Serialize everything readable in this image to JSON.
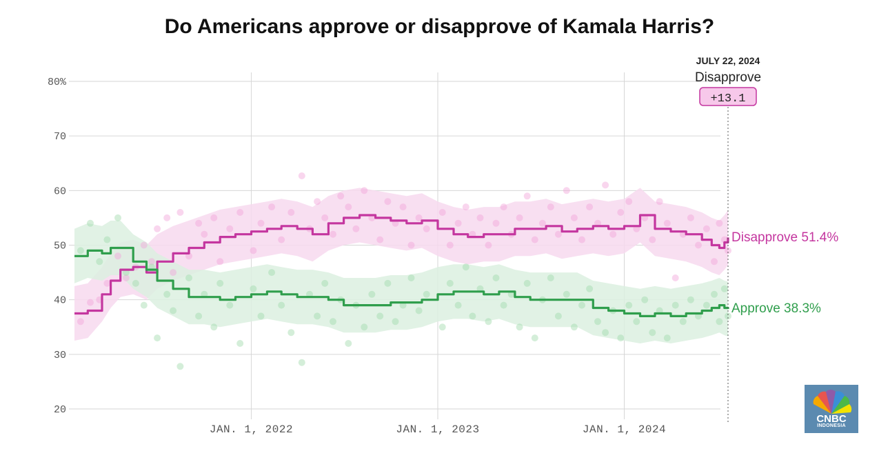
{
  "chart_data": {
    "type": "line",
    "title": "Do Americans approve or disapprove of Kamala Harris?",
    "y_ticks": [
      "80%",
      "70",
      "60",
      "50",
      "40",
      "30",
      "20"
    ],
    "y_tick_values": [
      80,
      70,
      60,
      50,
      40,
      30,
      20
    ],
    "ylim": [
      20,
      80
    ],
    "x_ticks": [
      "JAN. 1, 2022",
      "JAN. 1, 2023",
      "JAN. 1, 2024"
    ],
    "x_tick_dates": [
      "2022-01-01",
      "2023-01-01",
      "2024-01-01"
    ],
    "xlim": [
      "2021-01-20",
      "2024-07-22"
    ],
    "grid": true,
    "annotation": {
      "date_label": "JULY 22, 2024",
      "leader": "Disapprove",
      "net": "+13.1",
      "date": "2024-07-22"
    },
    "end_labels": {
      "disapprove": "Disapprove 51.4%",
      "approve": "Approve 38.3%"
    },
    "colors": {
      "disapprove": "#c4369f",
      "approve": "#2f9e4c",
      "disapprove_band": "#f7d9ee",
      "approve_band": "#dcf0e0"
    },
    "series": [
      {
        "key": "disapprove",
        "x": [
          "2021-01-20",
          "2021-02-15",
          "2021-03-15",
          "2021-04-01",
          "2021-04-20",
          "2021-05-15",
          "2021-06-10",
          "2021-07-01",
          "2021-08-01",
          "2021-09-01",
          "2021-10-01",
          "2021-11-01",
          "2021-12-01",
          "2022-01-01",
          "2022-02-01",
          "2022-03-01",
          "2022-04-01",
          "2022-05-01",
          "2022-06-01",
          "2022-07-01",
          "2022-08-01",
          "2022-09-01",
          "2022-10-01",
          "2022-11-01",
          "2022-12-01",
          "2023-01-01",
          "2023-02-01",
          "2023-03-01",
          "2023-04-01",
          "2023-05-01",
          "2023-06-01",
          "2023-07-01",
          "2023-08-01",
          "2023-09-01",
          "2023-10-01",
          "2023-11-01",
          "2023-12-01",
          "2024-01-01",
          "2024-02-01",
          "2024-03-01",
          "2024-04-01",
          "2024-05-01",
          "2024-06-01",
          "2024-06-20",
          "2024-07-05",
          "2024-07-15",
          "2024-07-22"
        ],
        "values": [
          37.5,
          38,
          41,
          43.5,
          45.5,
          46,
          45,
          47,
          48.5,
          49.5,
          50.5,
          51.5,
          52,
          52.5,
          53,
          53.5,
          53,
          52,
          54,
          55,
          55.5,
          55,
          54.5,
          54,
          54.5,
          53,
          52,
          51.5,
          52,
          52,
          53,
          53,
          53.5,
          52.5,
          53,
          53.5,
          53,
          53.5,
          55.5,
          53,
          52.5,
          52,
          51,
          50,
          49.5,
          50.5,
          51.4
        ],
        "band_half_width": [
          5,
          5,
          5,
          5,
          5,
          5,
          5,
          5,
          5,
          5,
          5,
          5,
          5,
          5,
          5,
          5,
          5,
          5,
          5,
          5,
          5,
          5,
          5,
          5,
          5,
          5,
          5,
          5,
          5,
          5,
          5,
          5,
          5,
          5,
          5,
          5,
          5,
          5,
          5,
          5,
          5,
          5,
          5,
          5,
          5,
          5,
          5
        ]
      },
      {
        "key": "approve",
        "x": [
          "2021-01-20",
          "2021-02-15",
          "2021-03-15",
          "2021-04-01",
          "2021-04-20",
          "2021-05-15",
          "2021-06-10",
          "2021-07-01",
          "2021-08-01",
          "2021-09-01",
          "2021-10-01",
          "2021-11-01",
          "2021-12-01",
          "2022-01-01",
          "2022-02-01",
          "2022-03-01",
          "2022-04-01",
          "2022-05-01",
          "2022-06-01",
          "2022-07-01",
          "2022-08-01",
          "2022-09-01",
          "2022-10-01",
          "2022-11-01",
          "2022-12-01",
          "2023-01-01",
          "2023-02-01",
          "2023-03-01",
          "2023-04-01",
          "2023-05-01",
          "2023-06-01",
          "2023-07-01",
          "2023-08-01",
          "2023-09-01",
          "2023-10-01",
          "2023-11-01",
          "2023-12-01",
          "2024-01-01",
          "2024-02-01",
          "2024-03-01",
          "2024-04-01",
          "2024-05-01",
          "2024-06-01",
          "2024-06-20",
          "2024-07-05",
          "2024-07-15",
          "2024-07-22"
        ],
        "values": [
          48,
          49,
          48.5,
          49.5,
          49.5,
          47,
          45.5,
          43.5,
          42,
          40.5,
          40.5,
          40,
          40.5,
          41,
          41.5,
          41,
          40.5,
          40.5,
          40,
          39,
          39,
          39,
          39.5,
          39.5,
          40,
          41,
          41.5,
          41.5,
          41,
          41.5,
          40.5,
          40,
          40,
          40,
          40,
          38.5,
          38,
          37.5,
          37,
          37.5,
          37,
          37.5,
          38,
          38.5,
          39,
          38.5,
          38.3
        ],
        "band_half_width": [
          5,
          5,
          5,
          5,
          5,
          5,
          5,
          5,
          5,
          5,
          5,
          5,
          5,
          5,
          5,
          5,
          5,
          5,
          5,
          5,
          5,
          5,
          5,
          5,
          5,
          5,
          5,
          5,
          5,
          5,
          5,
          5,
          5,
          5,
          5,
          5,
          5,
          5,
          5,
          5,
          5,
          5,
          5,
          5,
          5,
          5,
          5
        ]
      }
    ],
    "polls_disapprove": [
      [
        "2021-02-01",
        36
      ],
      [
        "2021-02-20",
        39.5
      ],
      [
        "2021-03-10",
        40
      ],
      [
        "2021-03-25",
        43
      ],
      [
        "2021-04-15",
        48
      ],
      [
        "2021-05-01",
        44
      ],
      [
        "2021-05-20",
        46
      ],
      [
        "2021-06-05",
        50
      ],
      [
        "2021-06-20",
        47
      ],
      [
        "2021-07-01",
        53
      ],
      [
        "2021-07-20",
        55
      ],
      [
        "2021-08-01",
        45
      ],
      [
        "2021-08-15",
        56
      ],
      [
        "2021-09-01",
        48
      ],
      [
        "2021-09-20",
        54
      ],
      [
        "2021-10-01",
        52
      ],
      [
        "2021-10-20",
        55
      ],
      [
        "2021-11-01",
        47
      ],
      [
        "2021-11-20",
        53
      ],
      [
        "2021-12-10",
        56
      ],
      [
        "2022-01-05",
        49
      ],
      [
        "2022-01-20",
        54
      ],
      [
        "2022-02-10",
        57
      ],
      [
        "2022-03-01",
        51
      ],
      [
        "2022-03-20",
        56
      ],
      [
        "2022-04-10",
        62.7
      ],
      [
        "2022-04-25",
        53
      ],
      [
        "2022-05-10",
        58
      ],
      [
        "2022-05-25",
        55
      ],
      [
        "2022-06-10",
        52
      ],
      [
        "2022-06-25",
        59
      ],
      [
        "2022-07-10",
        57
      ],
      [
        "2022-07-25",
        53
      ],
      [
        "2022-08-10",
        60
      ],
      [
        "2022-08-25",
        55
      ],
      [
        "2022-09-10",
        51
      ],
      [
        "2022-09-25",
        58
      ],
      [
        "2022-10-10",
        54
      ],
      [
        "2022-10-25",
        57
      ],
      [
        "2022-11-10",
        50
      ],
      [
        "2022-11-25",
        55
      ],
      [
        "2022-12-10",
        53
      ],
      [
        "2023-01-10",
        56
      ],
      [
        "2023-01-25",
        50
      ],
      [
        "2023-02-10",
        54
      ],
      [
        "2023-02-25",
        57
      ],
      [
        "2023-03-10",
        52
      ],
      [
        "2023-03-25",
        55
      ],
      [
        "2023-04-10",
        50
      ],
      [
        "2023-04-25",
        54
      ],
      [
        "2023-05-10",
        57
      ],
      [
        "2023-05-25",
        52
      ],
      [
        "2023-06-10",
        55
      ],
      [
        "2023-06-25",
        59
      ],
      [
        "2023-07-10",
        51
      ],
      [
        "2023-07-25",
        54
      ],
      [
        "2023-08-10",
        57
      ],
      [
        "2023-08-25",
        52
      ],
      [
        "2023-09-10",
        60
      ],
      [
        "2023-09-25",
        55
      ],
      [
        "2023-10-10",
        51
      ],
      [
        "2023-10-25",
        57
      ],
      [
        "2023-11-10",
        54
      ],
      [
        "2023-11-25",
        61
      ],
      [
        "2023-12-10",
        52
      ],
      [
        "2023-12-25",
        56
      ],
      [
        "2024-01-10",
        58
      ],
      [
        "2024-01-25",
        53
      ],
      [
        "2024-02-10",
        55
      ],
      [
        "2024-02-25",
        51
      ],
      [
        "2024-03-10",
        58
      ],
      [
        "2024-03-25",
        54
      ],
      [
        "2024-04-10",
        44
      ],
      [
        "2024-04-25",
        52
      ],
      [
        "2024-05-10",
        55
      ],
      [
        "2024-05-25",
        50
      ],
      [
        "2024-06-10",
        53
      ],
      [
        "2024-06-25",
        47
      ],
      [
        "2024-07-05",
        54
      ],
      [
        "2024-07-15",
        51
      ],
      [
        "2024-07-22",
        49
      ]
    ],
    "polls_approve": [
      [
        "2021-02-01",
        49
      ],
      [
        "2021-02-20",
        54
      ],
      [
        "2021-03-10",
        47
      ],
      [
        "2021-03-25",
        51
      ],
      [
        "2021-04-15",
        55
      ],
      [
        "2021-05-01",
        45
      ],
      [
        "2021-05-20",
        43
      ],
      [
        "2021-06-05",
        39
      ],
      [
        "2021-06-20",
        46
      ],
      [
        "2021-07-01",
        33
      ],
      [
        "2021-07-20",
        41
      ],
      [
        "2021-08-01",
        38
      ],
      [
        "2021-08-15",
        27.8
      ],
      [
        "2021-09-01",
        44
      ],
      [
        "2021-09-20",
        37
      ],
      [
        "2021-10-01",
        41
      ],
      [
        "2021-10-20",
        35
      ],
      [
        "2021-11-01",
        43
      ],
      [
        "2021-11-20",
        39
      ],
      [
        "2021-12-10",
        32
      ],
      [
        "2022-01-05",
        42
      ],
      [
        "2022-01-20",
        37
      ],
      [
        "2022-02-10",
        45
      ],
      [
        "2022-03-01",
        39
      ],
      [
        "2022-03-20",
        34
      ],
      [
        "2022-04-10",
        28.5
      ],
      [
        "2022-04-25",
        41
      ],
      [
        "2022-05-10",
        37
      ],
      [
        "2022-05-25",
        43
      ],
      [
        "2022-06-10",
        36
      ],
      [
        "2022-06-25",
        40
      ],
      [
        "2022-07-10",
        32
      ],
      [
        "2022-07-25",
        39
      ],
      [
        "2022-08-10",
        35
      ],
      [
        "2022-08-25",
        41
      ],
      [
        "2022-09-10",
        37
      ],
      [
        "2022-09-25",
        43
      ],
      [
        "2022-10-10",
        36
      ],
      [
        "2022-10-25",
        39
      ],
      [
        "2022-11-10",
        44
      ],
      [
        "2022-11-25",
        38
      ],
      [
        "2022-12-10",
        41
      ],
      [
        "2023-01-10",
        35
      ],
      [
        "2023-01-25",
        43
      ],
      [
        "2023-02-10",
        39
      ],
      [
        "2023-02-25",
        46
      ],
      [
        "2023-03-10",
        37
      ],
      [
        "2023-03-25",
        42
      ],
      [
        "2023-04-10",
        36
      ],
      [
        "2023-04-25",
        44
      ],
      [
        "2023-05-10",
        39
      ],
      [
        "2023-05-25",
        41
      ],
      [
        "2023-06-10",
        35
      ],
      [
        "2023-06-25",
        43
      ],
      [
        "2023-07-10",
        33
      ],
      [
        "2023-07-25",
        40
      ],
      [
        "2023-08-10",
        44
      ],
      [
        "2023-08-25",
        37
      ],
      [
        "2023-09-10",
        41
      ],
      [
        "2023-09-25",
        35
      ],
      [
        "2023-10-10",
        39
      ],
      [
        "2023-10-25",
        42
      ],
      [
        "2023-11-10",
        36
      ],
      [
        "2023-11-25",
        34
      ],
      [
        "2023-12-10",
        38
      ],
      [
        "2023-12-25",
        33
      ],
      [
        "2024-01-10",
        39
      ],
      [
        "2024-01-25",
        36
      ],
      [
        "2024-02-10",
        40
      ],
      [
        "2024-02-25",
        34
      ],
      [
        "2024-03-10",
        38
      ],
      [
        "2024-03-25",
        33
      ],
      [
        "2024-04-10",
        39
      ],
      [
        "2024-04-25",
        36
      ],
      [
        "2024-05-10",
        40
      ],
      [
        "2024-05-25",
        37
      ],
      [
        "2024-06-10",
        39
      ],
      [
        "2024-06-25",
        41
      ],
      [
        "2024-07-05",
        36
      ],
      [
        "2024-07-15",
        42
      ],
      [
        "2024-07-22",
        37
      ]
    ]
  },
  "logo": {
    "text": "CNBC",
    "sub": "INDONESIA"
  }
}
